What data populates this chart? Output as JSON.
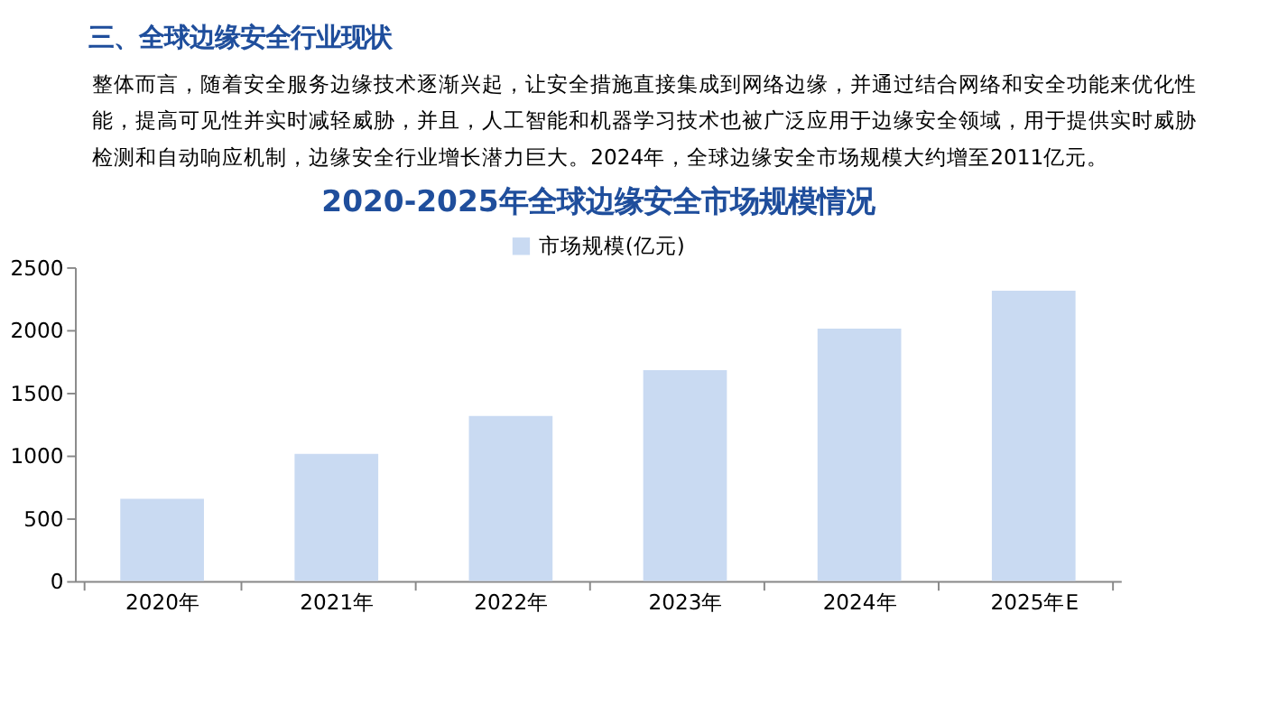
{
  "chart_data": {
    "type": "bar",
    "title": "2020-2025年全球边缘安全市场规模情况",
    "annotations": [
      "三、全球边缘安全行业现状",
      "整体而言，随着安全服务边缘技术逐渐兴起，让安全措施直接集成到网络边缘，并通过结合网络和安全功能来优化性能，提高可见性并实时减轻威胁，并且，人工智能和机器学习技术也被广泛应用于边缘安全领域，用于提供实时威胁检测和自动响应机制，边缘安全行业增长潜力巨大。2024年，全球边缘安全市场规模大约增至2011亿元。"
    ],
    "categories": [
      "2020年",
      "2021年",
      "2022年",
      "2023年",
      "2024年",
      "2025年E"
    ],
    "series": [
      {
        "name": "市场规模(亿元)",
        "color": "#c9daf2",
        "values": [
          655,
          1013,
          1315,
          1679,
          2011,
          2313
        ]
      }
    ],
    "ylim": [
      0,
      2500
    ],
    "yticks": [
      0,
      500,
      1000,
      1500,
      2000,
      2500
    ],
    "grid": false,
    "legend": "top"
  }
}
